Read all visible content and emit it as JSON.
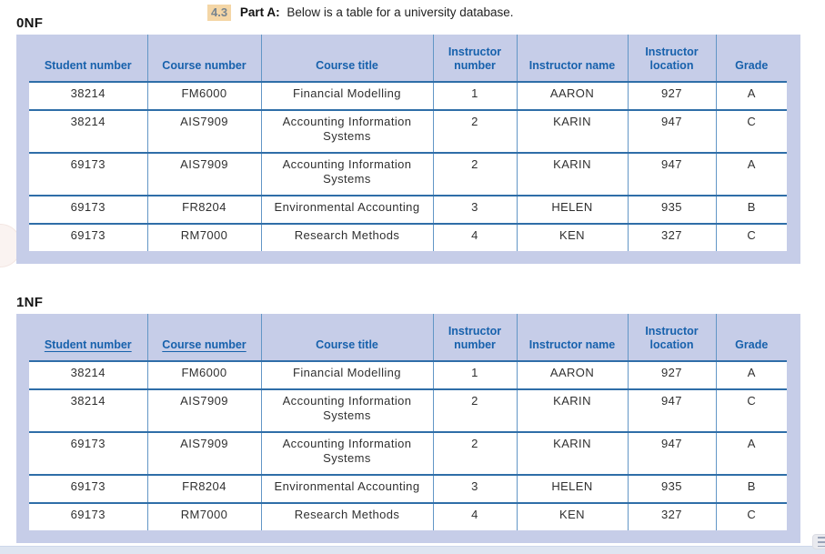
{
  "prompt": {
    "number": "4.3",
    "part": "Part A:",
    "instruction": "Below is a table for a university database."
  },
  "tables": [
    {
      "label": "0NF",
      "columns": [
        "Student number",
        "Course number",
        "Course title",
        "Instructor number",
        "Instructor name",
        "Instructor location",
        "Grade"
      ],
      "underlined_columns": [],
      "rows": [
        [
          "38214",
          "FM6000",
          "Financial Modelling",
          "1",
          "AARON",
          "927",
          "A"
        ],
        [
          "38214",
          "AIS7909",
          "Accounting Information Systems",
          "2",
          "KARIN",
          "947",
          "C"
        ],
        [
          "69173",
          "AIS7909",
          "Accounting Information Systems",
          "2",
          "KARIN",
          "947",
          "A"
        ],
        [
          "69173",
          "FR8204",
          "Environmental Accounting",
          "3",
          "HELEN",
          "935",
          "B"
        ],
        [
          "69173",
          "RM7000",
          "Research Methods",
          "4",
          "KEN",
          "327",
          "C"
        ]
      ]
    },
    {
      "label": "1NF",
      "columns": [
        "Student number",
        "Course number",
        "Course title",
        "Instructor number",
        "Instructor name",
        "Instructor location",
        "Grade"
      ],
      "underlined_columns": [
        0,
        1
      ],
      "rows": [
        [
          "38214",
          "FM6000",
          "Financial Modelling",
          "1",
          "AARON",
          "927",
          "A"
        ],
        [
          "38214",
          "AIS7909",
          "Accounting Information Systems",
          "2",
          "KARIN",
          "947",
          "C"
        ],
        [
          "69173",
          "AIS7909",
          "Accounting Information Systems",
          "2",
          "KARIN",
          "947",
          "A"
        ],
        [
          "69173",
          "FR8204",
          "Environmental Accounting",
          "3",
          "HELEN",
          "935",
          "B"
        ],
        [
          "69173",
          "RM7000",
          "Research Methods",
          "4",
          "KEN",
          "327",
          "C"
        ]
      ]
    }
  ],
  "colors": {
    "table_frame_lavender": "#c6cde8",
    "header_text_blue": "#1761ac",
    "row_line_blue": "#2f6ea8",
    "column_line_blue": "#6296c6",
    "badge_background": "#f4d6a6",
    "bottom_strip": "#dee5f1"
  },
  "icons": {
    "corner_widget": "list-lines-icon"
  }
}
